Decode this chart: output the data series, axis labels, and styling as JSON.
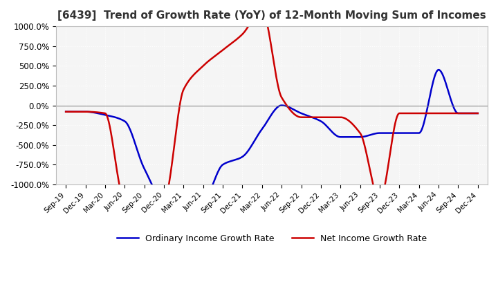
{
  "title": "[6439]  Trend of Growth Rate (YoY) of 12-Month Moving Sum of Incomes",
  "title_fontsize": 11,
  "ylim": [
    -1000,
    1000
  ],
  "yticks": [
    1000,
    750,
    500,
    250,
    0,
    -250,
    -500,
    -750,
    -1000
  ],
  "ytick_labels": [
    "1000.0%",
    "750.0%",
    "500.0%",
    "250.0%",
    "0.0%",
    "-250.0%",
    "-500.0%",
    "-750.0%",
    "-1000.0%"
  ],
  "background_color": "#ffffff",
  "plot_bg_color": "#f5f5f5",
  "grid_color": "#ffffff",
  "legend": [
    "Ordinary Income Growth Rate",
    "Net Income Growth Rate"
  ],
  "line_colors": [
    "#0000cc",
    "#cc0000"
  ],
  "x_labels": [
    "Sep-19",
    "Dec-19",
    "Mar-20",
    "Jun-20",
    "Sep-20",
    "Dec-20",
    "Mar-21",
    "Jun-21",
    "Sep-21",
    "Dec-21",
    "Mar-22",
    "Jun-22",
    "Sep-22",
    "Dec-22",
    "Mar-23",
    "Jun-23",
    "Sep-23",
    "Dec-23",
    "Mar-24",
    "Jun-24",
    "Sep-24",
    "Dec-24"
  ],
  "ordinary_income": [
    -80,
    -80,
    -120,
    -200,
    -800,
    -9999,
    -9999,
    -9999,
    -750,
    -650,
    -300,
    0,
    -100,
    -200,
    -400,
    -400,
    -350,
    -350,
    -350,
    450,
    -100,
    -100
  ],
  "net_income": [
    -80,
    -80,
    -100,
    -9999,
    -9999,
    -9999,
    200,
    500,
    700,
    900,
    9999,
    100,
    -150,
    -150,
    -150,
    -350,
    -9999,
    -100,
    -100,
    -100,
    -100,
    -100
  ]
}
